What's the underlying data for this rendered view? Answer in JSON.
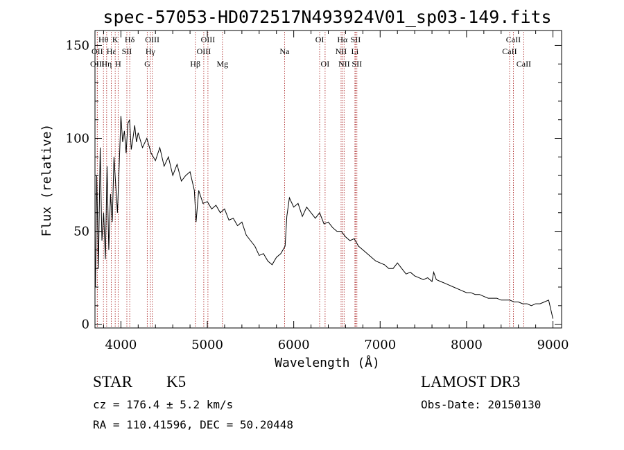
{
  "chart_data": {
    "type": "line",
    "title": "spec-57053-HD072517N493924V01_sp03-149.fits",
    "xlabel": "Wavelength (Å)",
    "ylabel": "Flux (relative)",
    "xlim": [
      3700,
      9100
    ],
    "ylim": [
      -2,
      158
    ],
    "xticks": [
      4000,
      5000,
      6000,
      7000,
      8000,
      9000
    ],
    "yticks": [
      0,
      50,
      100,
      150
    ],
    "grid": false,
    "series": [
      {
        "color": "#000000",
        "x": [
          3705,
          3720,
          3740,
          3760,
          3780,
          3800,
          3820,
          3840,
          3860,
          3880,
          3900,
          3920,
          3940,
          3960,
          3980,
          4000,
          4020,
          4040,
          4060,
          4080,
          4100,
          4120,
          4140,
          4160,
          4180,
          4200,
          4250,
          4300,
          4350,
          4400,
          4450,
          4500,
          4550,
          4600,
          4650,
          4700,
          4750,
          4800,
          4850,
          4870,
          4900,
          4950,
          5000,
          5050,
          5100,
          5150,
          5200,
          5250,
          5300,
          5350,
          5400,
          5450,
          5500,
          5550,
          5600,
          5650,
          5700,
          5750,
          5800,
          5850,
          5900,
          5920,
          5950,
          6000,
          6050,
          6100,
          6150,
          6200,
          6250,
          6300,
          6350,
          6400,
          6450,
          6500,
          6550,
          6600,
          6650,
          6700,
          6750,
          6800,
          6850,
          6900,
          6950,
          7000,
          7050,
          7100,
          7150,
          7200,
          7250,
          7300,
          7350,
          7400,
          7450,
          7500,
          7550,
          7600,
          7620,
          7650,
          7700,
          7750,
          7800,
          7850,
          7900,
          7950,
          8000,
          8050,
          8100,
          8150,
          8200,
          8250,
          8300,
          8350,
          8400,
          8450,
          8500,
          8550,
          8600,
          8650,
          8700,
          8750,
          8800,
          8850,
          8900,
          8950,
          9000
        ],
        "values": [
          20,
          80,
          30,
          95,
          45,
          60,
          35,
          85,
          40,
          70,
          55,
          90,
          75,
          60,
          85,
          112,
          98,
          104,
          92,
          108,
          110,
          94,
          100,
          107,
          98,
          103,
          95,
          100,
          92,
          88,
          95,
          85,
          90,
          80,
          86,
          77,
          80,
          82,
          72,
          55,
          72,
          65,
          66,
          62,
          64,
          60,
          62,
          56,
          57,
          53,
          55,
          48,
          45,
          42,
          37,
          38,
          34,
          32,
          36,
          38,
          42,
          58,
          68,
          63,
          65,
          58,
          63,
          60,
          57,
          60,
          54,
          55,
          52,
          50,
          50,
          47,
          45,
          46,
          42,
          40,
          38,
          36,
          34,
          33,
          32,
          30,
          30,
          33,
          30,
          27,
          28,
          26,
          25,
          24,
          25,
          23,
          28,
          24,
          23,
          22,
          21,
          20,
          19,
          18,
          17,
          17,
          16,
          16,
          15,
          14,
          14,
          14,
          13,
          13,
          13,
          12,
          12,
          11,
          11,
          10,
          11,
          11,
          12,
          13,
          3
        ]
      }
    ],
    "lines": [
      {
        "name": "Hθ",
        "wl": 3798,
        "row": 1
      },
      {
        "name": "OII",
        "wl": 3727,
        "row": 2
      },
      {
        "name": "OIII",
        "wl": 3727,
        "row": 3
      },
      {
        "name": "Hη",
        "wl": 3835,
        "row": 3
      },
      {
        "name": "Hε",
        "wl": 3889,
        "row": 2
      },
      {
        "name": "K",
        "wl": 3934,
        "row": 1
      },
      {
        "name": "H",
        "wl": 3968,
        "row": 3
      },
      {
        "name": "SII",
        "wl": 4069,
        "row": 2
      },
      {
        "name": "Hδ",
        "wl": 4102,
        "row": 1
      },
      {
        "name": "G",
        "wl": 4305,
        "row": 3
      },
      {
        "name": "Hγ",
        "wl": 4341,
        "row": 2
      },
      {
        "name": "OIII",
        "wl": 4363,
        "row": 1
      },
      {
        "name": "Hβ",
        "wl": 4861,
        "row": 3
      },
      {
        "name": "OIII",
        "wl": 4959,
        "row": 2
      },
      {
        "name": "OIII",
        "wl": 5007,
        "row": 1
      },
      {
        "name": "Mg",
        "wl": 5175,
        "row": 3
      },
      {
        "name": "Na",
        "wl": 5894,
        "row": 2
      },
      {
        "name": "OI",
        "wl": 6300,
        "row": 1
      },
      {
        "name": "OI",
        "wl": 6363,
        "row": 3
      },
      {
        "name": "NII",
        "wl": 6548,
        "row": 2
      },
      {
        "name": "Hα",
        "wl": 6563,
        "row": 1
      },
      {
        "name": "NII",
        "wl": 6583,
        "row": 3
      },
      {
        "name": "Li",
        "wl": 6708,
        "row": 2
      },
      {
        "name": "SII",
        "wl": 6716,
        "row": 1
      },
      {
        "name": "SII",
        "wl": 6731,
        "row": 3
      },
      {
        "name": "CaII",
        "wl": 8498,
        "row": 2
      },
      {
        "name": "CaII",
        "wl": 8542,
        "row": 1
      },
      {
        "name": "CaII",
        "wl": 8662,
        "row": 3
      }
    ]
  },
  "info": {
    "class": "STAR",
    "subclass": "K5",
    "survey": "LAMOST DR3",
    "cz": "cz = 176.4 ± 5.2 km/s",
    "obs_date": "Obs-Date: 20150130",
    "coords": "RA = 110.41596, DEC =  50.20448"
  }
}
